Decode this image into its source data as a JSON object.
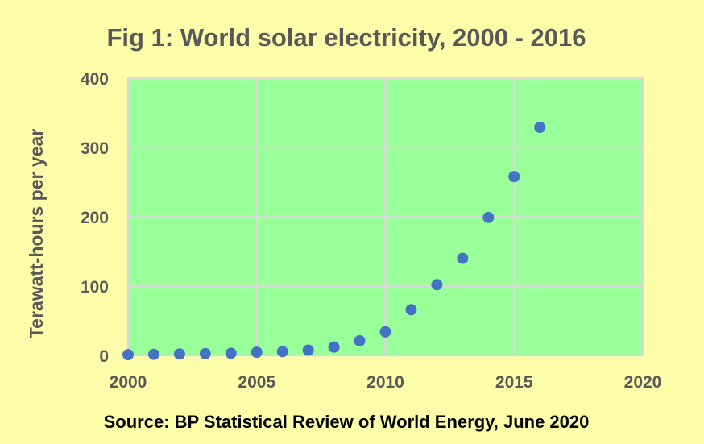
{
  "chart_data": {
    "type": "scatter",
    "title": "Fig 1: World solar electricity, 2000 - 2016",
    "xlabel": "",
    "ylabel": "Terawatt-hours per year",
    "source": "Source: BP Statistical Review of World Energy, June 2020",
    "xlim": [
      2000,
      2020
    ],
    "ylim": [
      0,
      400
    ],
    "x_ticks": [
      2000,
      2005,
      2010,
      2015,
      2020
    ],
    "y_ticks": [
      0,
      100,
      200,
      300,
      400
    ],
    "grid": true,
    "legend": "none",
    "series": [
      {
        "x": [
          2000,
          2001,
          2002,
          2003,
          2004,
          2005,
          2006,
          2007,
          2008,
          2009,
          2010,
          2011,
          2012,
          2013,
          2014,
          2015,
          2016
        ],
        "y": [
          1,
          1.5,
          2,
          2.5,
          3,
          4.5,
          5.5,
          7.5,
          12,
          21,
          34,
          66,
          102,
          140,
          199,
          258,
          329
        ]
      }
    ],
    "colors": {
      "background": "#fdfdaa",
      "plot_area": "#99ff99",
      "gridline": "#d9d9d9",
      "marker": "#4472c4",
      "text": "#595959"
    }
  }
}
